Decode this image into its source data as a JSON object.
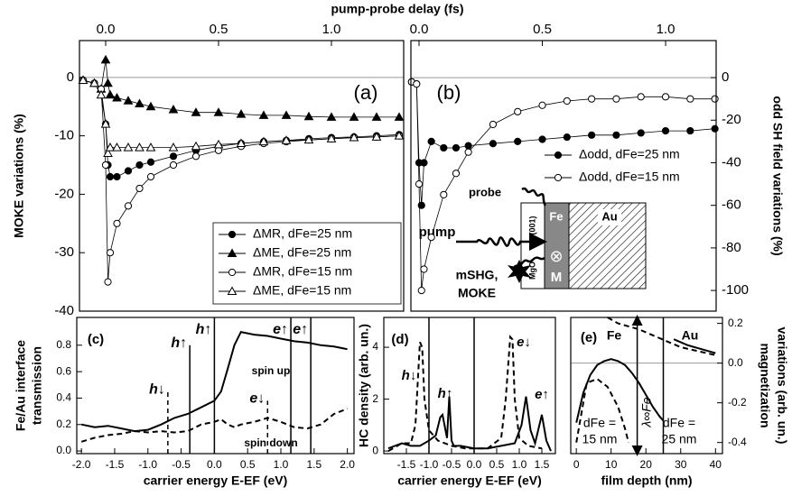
{
  "chart_data": [
    {
      "type": "line",
      "panel_label": "(a)",
      "x_label": "pump-probe delay (fs)",
      "y_label": "MOKE variations (%)",
      "x_axis": "top",
      "xlim": [
        -0.116,
        1.32
      ],
      "xticks": [
        {
          "value": 0,
          "label": "0.0"
        },
        0.5,
        {
          "value": 1,
          "label": "1.0"
        }
      ],
      "ylim": [
        -40,
        6.3
      ],
      "yticks": [
        0,
        -10,
        -20,
        -30,
        -40
      ],
      "zero_line": true,
      "legend": "lower right",
      "x": [
        -0.1,
        -0.05,
        -0.02,
        0,
        0.01,
        0.02,
        0.05,
        0.1,
        0.15,
        0.2,
        0.3,
        0.4,
        0.5,
        0.6,
        0.7,
        0.8,
        0.9,
        1.0,
        1.1,
        1.2,
        1.3
      ],
      "series": [
        {
          "name": "ΔMR, dFe=25 nm",
          "color": "#000000",
          "marker": "circle",
          "filled": true,
          "values": [
            -0.5,
            -1,
            -2,
            -8,
            -15,
            -17,
            -17,
            -16,
            -15,
            -14.5,
            -13.5,
            -12.5,
            -11.8,
            -11.3,
            -11,
            -10.8,
            -10.5,
            -10.3,
            -10.2,
            -10,
            -9.8
          ]
        },
        {
          "name": "ΔME, dFe=25 nm",
          "color": "#000000",
          "marker": "triangle",
          "filled": true,
          "values": [
            -0.5,
            -1,
            -2,
            3,
            -1,
            -3,
            -3.5,
            -4,
            -4.5,
            -5,
            -5.5,
            -6,
            -6,
            -6.3,
            -6.5,
            -6.5,
            -6.7,
            -6.8,
            -6.8,
            -6.8,
            -6.8
          ]
        },
        {
          "name": "ΔMR, dFe=15 nm",
          "color": "#000000",
          "marker": "circle",
          "filled": false,
          "values": [
            -0.5,
            -1,
            -2,
            -15,
            -35,
            -30,
            -25,
            -22,
            -19,
            -17,
            -15,
            -13.5,
            -12.5,
            -11.8,
            -11.3,
            -11,
            -10.7,
            -10.5,
            -10.3,
            -10.2,
            -10
          ]
        },
        {
          "name": "ΔME, dFe=15 nm",
          "color": "#000000",
          "marker": "triangle",
          "filled": false,
          "values": [
            -0.5,
            -1,
            -3,
            -8,
            -13,
            -12,
            -12,
            -12,
            -12,
            -12,
            -12,
            -11.8,
            -11.5,
            -11.3,
            -11,
            -10.8,
            -10.7,
            -10.5,
            -10.3,
            -10.2,
            -10
          ]
        }
      ]
    },
    {
      "type": "line",
      "panel_label": "(b)",
      "y2_label": "odd SH field variations (%)",
      "x_axis": "top",
      "xlim": [
        -0.033,
        1.205
      ],
      "xticks": [
        {
          "value": 0,
          "label": "0.0"
        },
        0.5,
        {
          "value": 1,
          "label": "1.0"
        }
      ],
      "y2lim": [
        -109.7,
        17.4
      ],
      "y2ticks": [
        0,
        -20,
        -40,
        -60,
        -80,
        -100
      ],
      "zero_line": true,
      "legend": "center right",
      "x": [
        -0.03,
        -0.01,
        0,
        0.01,
        0.02,
        0.05,
        0.1,
        0.15,
        0.2,
        0.3,
        0.4,
        0.5,
        0.6,
        0.7,
        0.8,
        0.9,
        1.0,
        1.1,
        1.2
      ],
      "series": [
        {
          "name": "Δodd, dFe=25 nm",
          "color": "#000000",
          "marker": "circle",
          "filled": true,
          "axis": "y2",
          "values": [
            -2,
            -3,
            -40,
            -60,
            -40,
            -30,
            -33,
            -33,
            -32,
            -31,
            -30,
            -29,
            -28,
            -27,
            -27,
            -26,
            -25,
            -25,
            -24
          ]
        },
        {
          "name": "Δodd, dFe=15 nm",
          "color": "#000000",
          "marker": "circle",
          "filled": false,
          "axis": "y2",
          "values": [
            -2,
            -3,
            -50,
            -100,
            -90,
            -75,
            -55,
            -45,
            -35,
            -22,
            -16,
            -13,
            -11,
            -10,
            -10,
            -9,
            -9,
            -10,
            -10
          ]
        }
      ],
      "annotations": [
        "probe",
        "pump",
        "MgO",
        "(001)",
        "Fe",
        "Au",
        "⊗",
        "M",
        "mSHG,",
        "MOKE"
      ]
    },
    {
      "type": "line",
      "panel_label": "(c)",
      "x_label": "carrier energy E-EF (eV)",
      "y_label": [
        "Fe/Au interface",
        "transmission"
      ],
      "xlim": [
        -2.07,
        2.1
      ],
      "xticks": [
        {
          "value": -2,
          "label": "-2.0"
        },
        -1.5,
        {
          "value": -1,
          "label": "-1.0"
        },
        -0.5,
        {
          "value": 0,
          "label": "0.0"
        },
        0.5,
        {
          "value": 1,
          "label": "1.0"
        },
        1.5,
        {
          "value": 2,
          "label": "2.0"
        }
      ],
      "ylim": [
        -0.02,
        1.01
      ],
      "yticks": [
        {
          "value": 0,
          "label": "0.0"
        },
        0.2,
        0.4,
        0.6,
        0.8
      ],
      "x": [
        -2,
        -1.8,
        -1.6,
        -1.4,
        -1.2,
        -1,
        -0.8,
        -0.6,
        -0.4,
        -0.2,
        0,
        0.1,
        0.2,
        0.3,
        0.4,
        0.6,
        0.8,
        1,
        1.2,
        1.4,
        1.6,
        1.8,
        2
      ],
      "series": [
        {
          "color": "#000000",
          "dash": false,
          "values": [
            0.2,
            0.18,
            0.19,
            0.17,
            0.15,
            0.16,
            0.2,
            0.25,
            0.28,
            0.33,
            0.38,
            0.45,
            0.62,
            0.8,
            0.9,
            0.88,
            0.87,
            0.85,
            0.83,
            0.82,
            0.8,
            0.79,
            0.77
          ]
        },
        {
          "color": "#000000",
          "dash": true,
          "values": [
            0.07,
            0.1,
            0.12,
            0.13,
            0.15,
            0.14,
            0.15,
            0.14,
            0.15,
            0.2,
            0.22,
            0.24,
            0.2,
            0.18,
            0.2,
            0.22,
            0.25,
            0.22,
            0.18,
            0.17,
            0.2,
            0.28,
            0.32
          ]
        }
      ],
      "markers": [
        {
          "label": "h↓",
          "x": -0.7,
          "ymax": 0.45,
          "style": "dashed"
        },
        {
          "label": "h↑",
          "x": -0.37,
          "ymax": 0.8,
          "style": "solid"
        },
        {
          "label": "h↑",
          "x": 0,
          "ymax": 1.01,
          "style": "solid"
        },
        {
          "label": "e↓",
          "x": 0.8,
          "ymax": 0.38,
          "style": "dashed"
        },
        {
          "label": "e↑",
          "x": 1.15,
          "ymax": 1.01,
          "style": "solid"
        },
        {
          "label": "e↑",
          "x": 1.45,
          "ymax": 1.01,
          "style": "solid"
        }
      ],
      "annotations": [
        "spin up",
        "spin down"
      ]
    },
    {
      "type": "line",
      "panel_label": "(d)",
      "x_label": "carrier energy E-EF (eV)",
      "y_label": "HC density (arb. un.)",
      "xlim": [
        -2.0,
        1.8
      ],
      "xticks": [
        -1.5,
        {
          "value": -1,
          "label": "-1.0"
        },
        -0.5,
        {
          "value": 0,
          "label": "0.0"
        },
        0.5,
        {
          "value": 1,
          "label": "1.0"
        },
        1.5
      ],
      "ylim": [
        -0.1,
        5.15
      ],
      "yticks": [
        0,
        2,
        4
      ],
      "series": [
        {
          "color": "#000000",
          "dash": true,
          "x": [
            -1.9,
            -1.6,
            -1.4,
            -1.3,
            -1.2,
            -1.15,
            -1.1,
            -1.0,
            -0.8,
            -0.5,
            -0.2,
            0,
            0.3,
            0.6,
            0.7,
            0.8,
            0.85,
            0.9,
            1,
            1.2,
            1.5
          ],
          "values": [
            0,
            0.3,
            0.3,
            1.0,
            4.2,
            4.0,
            2.0,
            0.8,
            0.4,
            0.2,
            0.1,
            0.1,
            0.1,
            0.5,
            2,
            4.4,
            4.3,
            2,
            0.5,
            0.2,
            0.1
          ]
        },
        {
          "color": "#000000",
          "dash": false,
          "x": [
            -1.9,
            -1.6,
            -1.4,
            -1.2,
            -1.0,
            -0.85,
            -0.75,
            -0.7,
            -0.6,
            -0.55,
            -0.5,
            -0.45,
            -0.3,
            0,
            0.3,
            0.6,
            0.9,
            1.05,
            1.15,
            1.25,
            1.35,
            1.5,
            1.6,
            1.7
          ],
          "values": [
            0.1,
            0.3,
            0.2,
            0.2,
            0.4,
            0.6,
            1.3,
            1.4,
            0.5,
            2.1,
            0.4,
            0.2,
            0.2,
            0.1,
            0.1,
            0.2,
            0.3,
            1,
            2.1,
            0.8,
            0.3,
            1.4,
            0.4,
            0
          ]
        }
      ],
      "markers": [
        {
          "x": -1.0,
          "style": "solid"
        },
        {
          "x": 0,
          "style": "solid"
        }
      ],
      "annotations": [
        "h↓",
        "h↑",
        "e↓",
        "e↑"
      ]
    },
    {
      "type": "line",
      "panel_label": "(e)",
      "x_label": "film depth (nm)",
      "y2_label": [
        "magnetization",
        "variations (arb. un.)"
      ],
      "xlim": [
        -1.6,
        42
      ],
      "xticks": [
        0,
        10,
        20,
        30,
        40
      ],
      "y2lim": [
        -0.456,
        0.23
      ],
      "y2ticks": [
        0.2,
        {
          "value": 0,
          "label": "0.0"
        },
        -0.2,
        -0.4
      ],
      "zero_line": true,
      "series": [
        {
          "color": "#000000",
          "dash": false,
          "axis": "y2",
          "x": [
            0,
            2,
            4,
            6,
            8,
            10,
            12,
            14,
            16,
            18,
            20,
            22,
            24,
            25,
            25,
            28,
            32,
            36,
            40
          ],
          "values": [
            -0.3,
            -0.15,
            -0.06,
            -0.01,
            0.01,
            0.02,
            0.01,
            -0.01,
            -0.05,
            -0.1,
            -0.16,
            -0.22,
            -0.27,
            -0.29,
            null,
            0.12,
            0.09,
            0.07,
            0.05
          ]
        },
        {
          "color": "#000000",
          "dash": true,
          "axis": "y2",
          "x": [
            0,
            3,
            6,
            9,
            12,
            14,
            15,
            15,
            9,
            12,
            18,
            22,
            26,
            30,
            35,
            40
          ],
          "values": [
            -0.4,
            -0.1,
            -0.08,
            -0.12,
            -0.22,
            -0.33,
            -0.4,
            null,
            0.23,
            0.2,
            0.17,
            0.14,
            0.11,
            0.08,
            0.06,
            0.04
          ]
        }
      ],
      "markers": [
        {
          "x": 25,
          "style": "solid"
        },
        {
          "x": 17.5,
          "style": "arrow",
          "label": "λ∞Fe"
        }
      ],
      "annotations": [
        "Fe",
        "Au",
        "dFe =",
        "15 nm",
        "dFe =",
        "25 nm"
      ]
    }
  ]
}
